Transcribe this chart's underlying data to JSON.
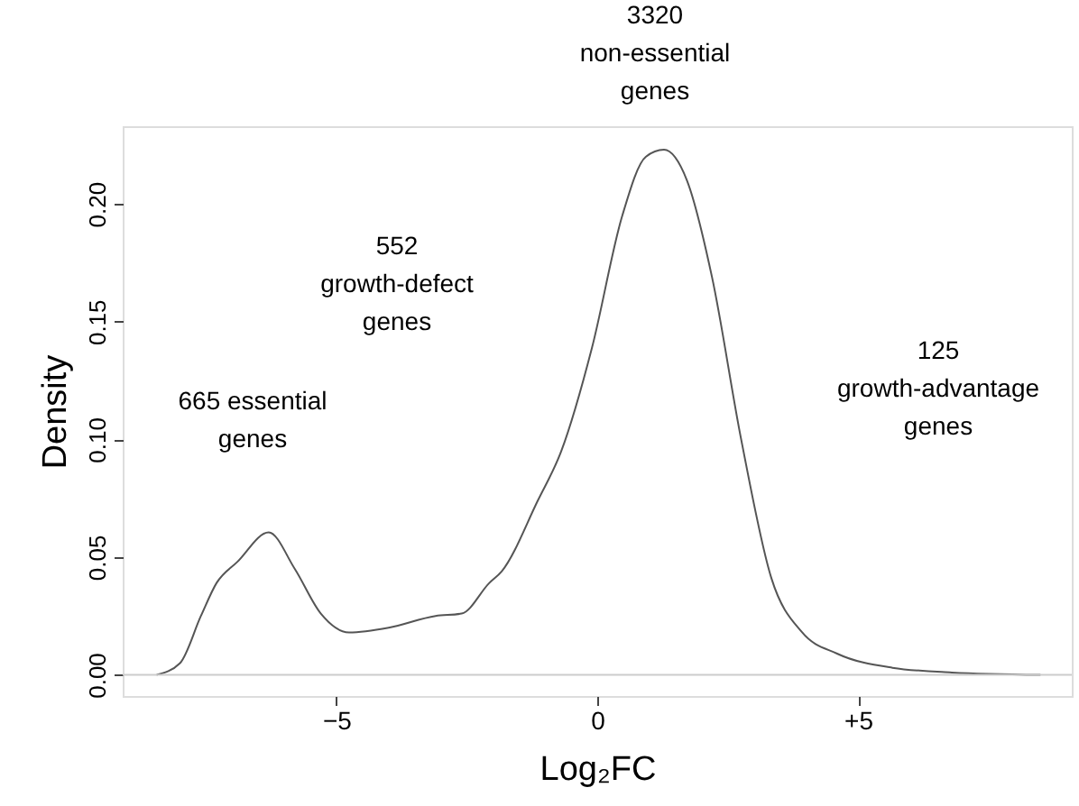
{
  "chart_data": {
    "type": "line",
    "xlabel": "Log₂FC",
    "ylabel": "Density",
    "series": [
      {
        "color": "#555555",
        "x": [
          -8.45,
          -8.0,
          -7.6,
          -7.3,
          -6.9,
          -6.3,
          -5.8,
          -5.3,
          -4.76,
          -4.0,
          -3.1,
          -2.6,
          -2.07,
          -1.83,
          -1.14,
          -0.69,
          -0.1,
          0.48,
          0.93,
          1.28,
          1.72,
          2.2,
          2.76,
          3.34,
          3.93,
          4.6,
          5.66,
          6.8,
          8.5
        ],
        "values": [
          0.0,
          0.005,
          0.025,
          0.039,
          0.048,
          0.0605,
          0.045,
          0.026,
          0.018,
          0.02,
          0.025,
          0.026,
          0.039,
          0.044,
          0.074,
          0.095,
          0.139,
          0.195,
          0.22,
          0.223,
          0.21,
          0.169,
          0.1,
          0.041,
          0.018,
          0.009,
          0.003,
          0.001,
          0.0
        ]
      }
    ],
    "xlim": [
      -9.1,
      9.1
    ],
    "xticks": [
      -5,
      0,
      {
        "value": 5,
        "label": "+5"
      }
    ],
    "ylim": [
      -0.009,
      0.233
    ],
    "yticks": [
      {
        "value": 0,
        "label": "0.00"
      },
      {
        "value": 0.05,
        "label": "0.05"
      },
      {
        "value": 0.1,
        "label": "0.10"
      },
      {
        "value": 0.15,
        "label": "0.15"
      },
      {
        "value": 0.2,
        "label": "0.20"
      }
    ],
    "ref_lines": [
      {
        "axis": "y",
        "value": 0,
        "color": "#cccccc"
      }
    ],
    "grid": false,
    "marker": "none",
    "line_style": "solid",
    "annotations": [
      "665 essential\ngenes",
      "552\ngrowth-defect\ngenes",
      "3320\nnon-essential\ngenes",
      "125\ngrowth-advantage\ngenes"
    ]
  }
}
